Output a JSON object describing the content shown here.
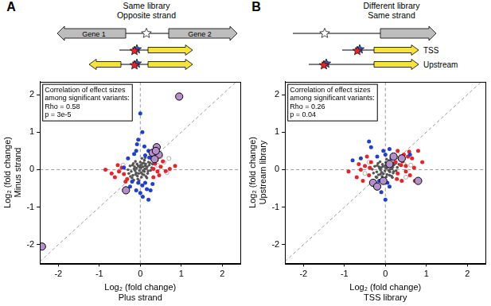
{
  "chart_data": [
    {
      "type": "scatter",
      "panel": "A",
      "title": "Same library",
      "subtitle": "Opposite strand",
      "diagram_labels": [
        "Gene 1",
        "Gene 2"
      ],
      "annotation": [
        "Correlation of effect sizes",
        "among significant variants:",
        "Rho = 0.58",
        "p = 3e-5"
      ],
      "x_label": [
        "Log₂ (fold change)",
        "Plus strand"
      ],
      "y_label": [
        "Log₂ (fold change)",
        "Minus strand"
      ],
      "xlim": [
        -2.45,
        2.45
      ],
      "ylim": [
        -2.5,
        2.35
      ],
      "xticks": [
        -2,
        -1,
        0,
        1,
        2
      ],
      "yticks": [
        -2,
        -1,
        0,
        1,
        2
      ],
      "grid": false,
      "reference_lines": [
        {
          "x": [
            -2.45,
            2.45
          ],
          "y": [
            -2.45,
            2.45
          ]
        },
        {
          "x": [
            0,
            0
          ],
          "y": [
            -2.5,
            2.35
          ]
        },
        {
          "x": [
            -2.45,
            2.45
          ],
          "y": [
            0,
            0
          ]
        }
      ],
      "series": [
        {
          "color": "#555555",
          "marker": "dot",
          "values": [
            [
              0.02,
              0.05
            ],
            [
              -0.05,
              0.1
            ],
            [
              0.1,
              -0.05
            ],
            [
              -0.1,
              -0.08
            ],
            [
              0.05,
              -0.12
            ],
            [
              -0.02,
              -0.02
            ],
            [
              0.12,
              0.1
            ],
            [
              -0.15,
              0.02
            ],
            [
              0.08,
              0.18
            ],
            [
              -0.08,
              0.15
            ],
            [
              0.18,
              -0.1
            ],
            [
              -0.18,
              -0.15
            ],
            [
              0.0,
              0.2
            ],
            [
              0.03,
              -0.2
            ],
            [
              0.15,
              0.03
            ],
            [
              -0.12,
              0.22
            ],
            [
              0.22,
              0.12
            ],
            [
              -0.22,
              -0.05
            ],
            [
              0.06,
              0.08
            ],
            [
              -0.04,
              -0.1
            ],
            [
              0.1,
              0.25
            ],
            [
              -0.06,
              -0.25
            ],
            [
              0.25,
              -0.02
            ],
            [
              -0.25,
              0.1
            ],
            [
              0.14,
              -0.18
            ],
            [
              -0.14,
              0.08
            ],
            [
              0.2,
              0.2
            ],
            [
              -0.2,
              -0.22
            ],
            [
              0.01,
              0.12
            ],
            [
              0.07,
              -0.03
            ],
            [
              -0.09,
              0.04
            ],
            [
              0.13,
              0.15
            ],
            [
              -0.11,
              -0.13
            ],
            [
              0.04,
              0.3
            ],
            [
              -0.03,
              -0.3
            ],
            [
              0.28,
              0.05
            ],
            [
              -0.28,
              -0.1
            ],
            [
              0.17,
              0.08
            ],
            [
              -0.17,
              0.16
            ],
            [
              0.09,
              -0.14
            ],
            [
              -0.01,
              0.06
            ],
            [
              0.11,
              0.02
            ],
            [
              -0.07,
              -0.17
            ],
            [
              0.19,
              -0.04
            ],
            [
              -0.19,
              0.12
            ],
            [
              0.05,
              0.16
            ],
            [
              -0.13,
              -0.02
            ],
            [
              0.24,
              0.18
            ],
            [
              -0.24,
              -0.18
            ],
            [
              0.16,
              -0.22
            ],
            [
              0.3,
              0.15
            ],
            [
              -0.3,
              0.0
            ],
            [
              0.02,
              -0.08
            ],
            [
              -0.16,
              -0.28
            ],
            [
              0.12,
              0.32
            ]
          ]
        },
        {
          "color": "#aaaaaa",
          "marker": "open",
          "values": [
            [
              0.5,
              0.35
            ],
            [
              0.42,
              0.12
            ],
            [
              -0.5,
              -0.02
            ],
            [
              0.65,
              -0.08
            ],
            [
              0.28,
              0.3
            ],
            [
              0.58,
              0.2
            ],
            [
              -0.42,
              0.12
            ],
            [
              0.7,
              0.3
            ]
          ]
        },
        {
          "color": "#e8232a",
          "marker": "circle",
          "values": [
            [
              -0.85,
              0.0
            ],
            [
              -0.52,
              -0.05
            ],
            [
              -0.4,
              -0.12
            ],
            [
              -0.62,
              -0.2
            ],
            [
              -0.45,
              0.05
            ],
            [
              -0.55,
              0.12
            ],
            [
              0.32,
              0.02
            ],
            [
              0.42,
              -0.05
            ],
            [
              0.5,
              0.08
            ],
            [
              0.46,
              -0.15
            ],
            [
              0.62,
              -0.04
            ],
            [
              0.36,
              0.16
            ],
            [
              0.55,
              0.22
            ],
            [
              -0.32,
              -0.25
            ],
            [
              0.32,
              -0.2
            ],
            [
              0.72,
              0.02
            ],
            [
              -0.36,
              -0.32
            ],
            [
              0.4,
              0.26
            ],
            [
              -0.7,
              -0.1
            ],
            [
              0.85,
              0.1
            ]
          ]
        },
        {
          "color": "#1f3fd0",
          "marker": "circle",
          "values": [
            [
              0.0,
              1.5
            ],
            [
              0.05,
              1.0
            ],
            [
              -0.05,
              0.8
            ],
            [
              0.1,
              0.62
            ],
            [
              -0.1,
              0.5
            ],
            [
              0.05,
              -0.42
            ],
            [
              0.0,
              -0.62
            ],
            [
              -0.1,
              -0.55
            ],
            [
              0.12,
              -0.35
            ],
            [
              0.16,
              -0.52
            ],
            [
              -0.2,
              -0.32
            ],
            [
              -0.15,
              0.42
            ],
            [
              0.2,
              0.5
            ],
            [
              0.22,
              0.32
            ],
            [
              -0.3,
              0.3
            ],
            [
              -0.05,
              -0.35
            ],
            [
              0.3,
              -0.38
            ],
            [
              -0.25,
              -0.45
            ],
            [
              0.06,
              -0.72
            ],
            [
              0.12,
              0.38
            ],
            [
              -0.4,
              0.06
            ],
            [
              0.2,
              -0.8
            ],
            [
              -0.08,
              0.68
            ],
            [
              0.25,
              -0.55
            ]
          ]
        },
        {
          "color": "#b58fc9",
          "marker": "large",
          "values": [
            [
              -2.4,
              -2.05
            ],
            [
              0.95,
              1.95
            ],
            [
              0.3,
              0.45
            ],
            [
              0.4,
              0.6
            ],
            [
              0.45,
              0.4
            ],
            [
              0.35,
              0.28
            ],
            [
              -0.35,
              -0.55
            ],
            [
              0.38,
              0.5
            ]
          ]
        }
      ]
    },
    {
      "type": "scatter",
      "panel": "B",
      "title": "Different library",
      "subtitle": "Same strand",
      "diagram_labels": [
        "TSS",
        "Upstream"
      ],
      "annotation": [
        "Correlation of effect sizes",
        "among significant variants:",
        "Rho = 0.26",
        "p = 0.04"
      ],
      "x_label": [
        "Log₂ (fold change)",
        "TSS library"
      ],
      "y_label": [
        "Log₂ (fold change)",
        "Upstream library"
      ],
      "xlim": [
        -2.45,
        2.45
      ],
      "ylim": [
        -2.5,
        2.35
      ],
      "xticks": [
        -2,
        -1,
        0,
        1,
        2
      ],
      "yticks": [
        -2,
        -1,
        0,
        1,
        2
      ],
      "grid": false,
      "reference_lines": [
        {
          "x": [
            -2.45,
            2.45
          ],
          "y": [
            -2.45,
            2.45
          ]
        },
        {
          "x": [
            0,
            0
          ],
          "y": [
            -2.5,
            2.35
          ]
        },
        {
          "x": [
            -2.45,
            2.45
          ],
          "y": [
            0,
            0
          ]
        }
      ],
      "series": [
        {
          "color": "#555555",
          "marker": "dot",
          "values": [
            [
              0.03,
              0.04
            ],
            [
              -0.06,
              0.09
            ],
            [
              0.11,
              -0.06
            ],
            [
              -0.09,
              -0.07
            ],
            [
              0.04,
              -0.13
            ],
            [
              -0.01,
              -0.03
            ],
            [
              0.13,
              0.09
            ],
            [
              -0.14,
              0.03
            ],
            [
              0.07,
              0.17
            ],
            [
              -0.07,
              0.14
            ],
            [
              0.19,
              -0.09
            ],
            [
              -0.17,
              -0.14
            ],
            [
              0.01,
              0.19
            ],
            [
              0.02,
              -0.19
            ],
            [
              0.16,
              0.02
            ],
            [
              -0.13,
              0.21
            ],
            [
              0.21,
              0.13
            ],
            [
              -0.21,
              -0.06
            ],
            [
              0.05,
              0.07
            ],
            [
              -0.05,
              -0.11
            ],
            [
              0.09,
              0.24
            ],
            [
              -0.05,
              -0.24
            ],
            [
              0.26,
              -0.03
            ],
            [
              -0.26,
              0.09
            ],
            [
              0.15,
              -0.17
            ],
            [
              -0.15,
              0.07
            ],
            [
              0.21,
              0.19
            ],
            [
              -0.21,
              -0.21
            ],
            [
              0.0,
              0.11
            ],
            [
              0.08,
              -0.02
            ],
            [
              -0.1,
              0.05
            ],
            [
              0.14,
              0.14
            ],
            [
              -0.12,
              -0.12
            ],
            [
              0.03,
              0.28
            ],
            [
              -0.04,
              -0.29
            ],
            [
              0.29,
              0.06
            ],
            [
              -0.29,
              -0.09
            ],
            [
              0.18,
              0.07
            ],
            [
              -0.18,
              0.17
            ],
            [
              0.1,
              -0.15
            ],
            [
              0.0,
              0.05
            ],
            [
              0.12,
              0.01
            ],
            [
              -0.08,
              -0.18
            ],
            [
              0.2,
              -0.05
            ],
            [
              -0.2,
              0.11
            ],
            [
              0.06,
              0.15
            ],
            [
              -0.12,
              -0.01
            ],
            [
              0.25,
              0.17
            ],
            [
              -0.23,
              -0.19
            ],
            [
              0.17,
              -0.21
            ],
            [
              0.33,
              0.14
            ],
            [
              -0.32,
              0.01
            ]
          ]
        },
        {
          "color": "#aaaaaa",
          "marker": "open",
          "values": [
            [
              0.45,
              0.15
            ],
            [
              -0.4,
              0.2
            ],
            [
              0.5,
              -0.2
            ],
            [
              0.3,
              0.4
            ],
            [
              -0.5,
              -0.1
            ],
            [
              0.62,
              0.12
            ]
          ]
        },
        {
          "color": "#e8232a",
          "marker": "circle",
          "values": [
            [
              -0.9,
              -0.05
            ],
            [
              -0.5,
              0.1
            ],
            [
              -0.4,
              -0.15
            ],
            [
              -0.6,
              0.0
            ],
            [
              -0.35,
              0.2
            ],
            [
              0.3,
              -0.1
            ],
            [
              0.35,
              0.3
            ],
            [
              0.45,
              0.4
            ],
            [
              0.5,
              0.1
            ],
            [
              0.6,
              -0.15
            ],
            [
              0.7,
              0.05
            ],
            [
              0.4,
              -0.3
            ],
            [
              0.55,
              0.35
            ],
            [
              0.3,
              0.5
            ],
            [
              -0.3,
              -0.35
            ],
            [
              0.25,
              0.2
            ],
            [
              0.65,
              0.3
            ],
            [
              0.8,
              0.5
            ],
            [
              0.5,
              -0.05
            ],
            [
              -0.45,
              0.35
            ],
            [
              -0.7,
              -0.2
            ],
            [
              0.38,
              0.12
            ],
            [
              -0.55,
              -0.3
            ],
            [
              0.72,
              -0.3
            ],
            [
              0.28,
              -0.25
            ],
            [
              0.9,
              0.2
            ],
            [
              -0.38,
              0.05
            ],
            [
              0.42,
              0.22
            ],
            [
              0.58,
              0.48
            ],
            [
              -0.65,
              0.15
            ]
          ]
        },
        {
          "color": "#1f3fd0",
          "marker": "circle",
          "values": [
            [
              -0.4,
              0.75
            ],
            [
              -0.35,
              0.6
            ],
            [
              -0.6,
              0.3
            ],
            [
              -0.05,
              0.5
            ],
            [
              0.0,
              0.4
            ],
            [
              0.05,
              -0.35
            ],
            [
              -0.1,
              -0.6
            ],
            [
              0.0,
              -0.8
            ],
            [
              0.1,
              -0.45
            ],
            [
              -0.2,
              0.35
            ],
            [
              0.15,
              0.3
            ],
            [
              0.6,
              0.4
            ],
            [
              -0.15,
              -0.3
            ],
            [
              -0.8,
              0.25
            ],
            [
              0.1,
              0.55
            ]
          ]
        },
        {
          "color": "#b58fc9",
          "marker": "large",
          "values": [
            [
              -0.3,
              -0.35
            ],
            [
              -0.05,
              -0.3
            ],
            [
              0.2,
              0.35
            ],
            [
              0.4,
              0.3
            ],
            [
              0.1,
              0.15
            ],
            [
              0.8,
              -0.3
            ],
            [
              -0.2,
              -0.45
            ]
          ]
        }
      ]
    }
  ]
}
